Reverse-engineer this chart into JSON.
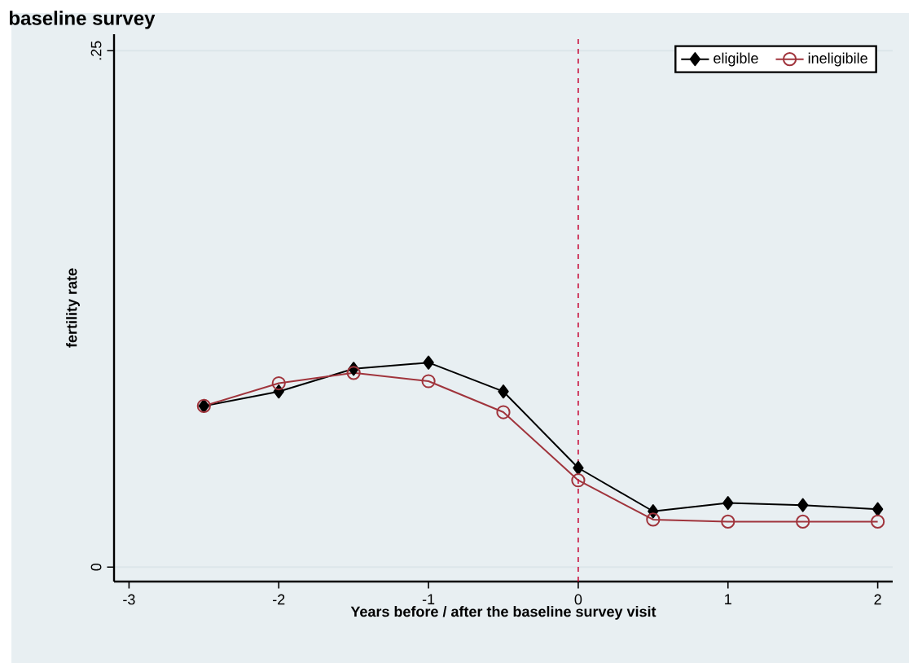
{
  "chart_data": {
    "type": "line",
    "title": "baseline survey",
    "xlabel": "Years before / after the baseline survey visit",
    "ylabel": "fertility rate",
    "x": [
      -2.5,
      -2,
      -1.5,
      -1,
      -0.5,
      0,
      0.5,
      1,
      1.5,
      2
    ],
    "series": [
      {
        "name": "eligible",
        "color": "#000000",
        "marker": "diamond",
        "values": [
          0.078,
          0.085,
          0.096,
          0.099,
          0.085,
          0.048,
          0.027,
          0.031,
          0.03,
          0.028
        ]
      },
      {
        "name": "ineligibile",
        "color": "#a0343c",
        "marker": "circle",
        "values": [
          0.078,
          0.089,
          0.094,
          0.09,
          0.075,
          0.042,
          0.023,
          0.022,
          0.022,
          0.022
        ]
      }
    ],
    "xlim": [
      -3.1,
      2.1
    ],
    "ylim": [
      -0.007,
      0.258
    ],
    "xticks": [
      -3,
      -2,
      -1,
      0,
      1,
      2
    ],
    "yticks": [
      0,
      {
        "value": 0.25,
        "label": ".25"
      }
    ],
    "grid": "y",
    "legend": "top right",
    "line_style": "solid",
    "ref_lines": [
      {
        "axis": "x",
        "value": 0,
        "color": "#c8103c",
        "line_style": "dashed"
      }
    ]
  }
}
